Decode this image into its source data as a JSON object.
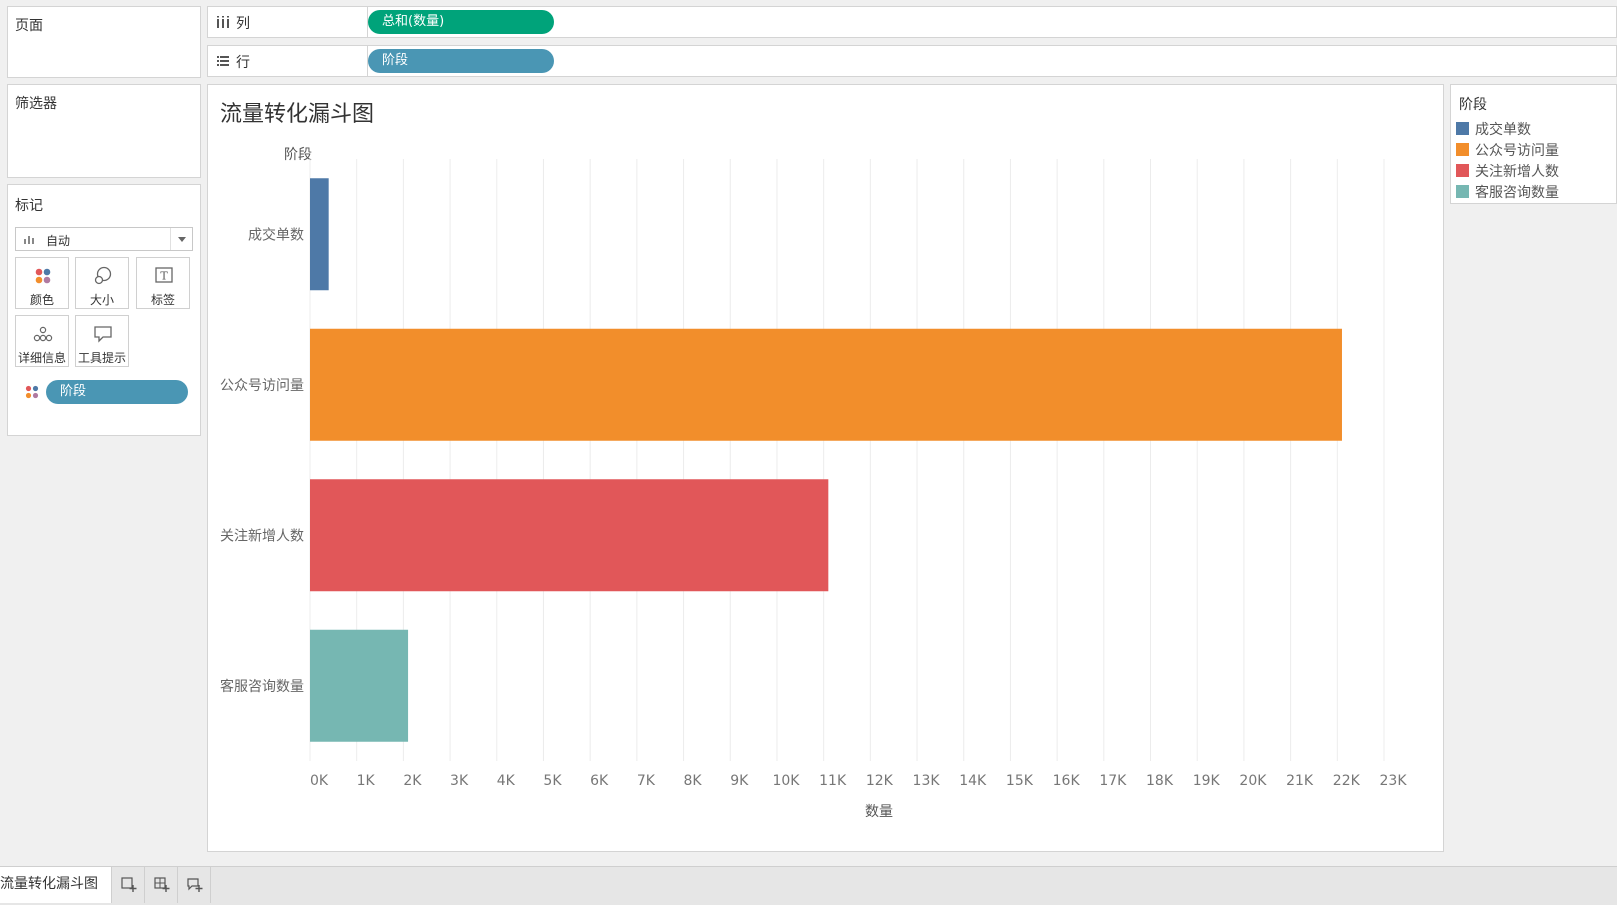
{
  "panels": {
    "pages_title": "页面",
    "filters_title": "筛选器",
    "marks_title": "标记"
  },
  "marks": {
    "mark_type": "自动",
    "buttons": {
      "color": "颜色",
      "size": "大小",
      "label": "标签",
      "detail": "详细信息",
      "tooltip": "工具提示"
    },
    "color_pill": "阶段"
  },
  "shelves": {
    "columns_label": "列",
    "columns_pill": "总和(数量)",
    "rows_label": "行",
    "rows_pill": "阶段"
  },
  "legend": {
    "title": "阶段",
    "items": [
      {
        "label": "成交单数",
        "color": "#4e79a7"
      },
      {
        "label": "公众号访问量",
        "color": "#f28e2b"
      },
      {
        "label": "关注新增人数",
        "color": "#e15759"
      },
      {
        "label": "客服咨询数量",
        "color": "#76b7b2"
      }
    ]
  },
  "sheet_tab": "流量转化漏斗图",
  "tab_icons": [
    "new-worksheet-icon",
    "new-dashboard-icon",
    "new-story-icon"
  ],
  "chart_data": {
    "type": "bar",
    "orientation": "horizontal",
    "title": "流量转化漏斗图",
    "row_header": "阶段",
    "xlabel": "数量",
    "categories": [
      "成交单数",
      "公众号访问量",
      "关注新增人数",
      "客服咨询数量"
    ],
    "values": [
      400,
      22100,
      11100,
      2100
    ],
    "colors": [
      "#4e79a7",
      "#f28e2b",
      "#e15759",
      "#76b7b2"
    ],
    "xlim": [
      0,
      23000
    ],
    "tick_step": 1000,
    "tick_labels": [
      "0K",
      "1K",
      "2K",
      "3K",
      "4K",
      "5K",
      "6K",
      "7K",
      "8K",
      "9K",
      "10K",
      "11K",
      "12K",
      "13K",
      "14K",
      "15K",
      "16K",
      "17K",
      "18K",
      "19K",
      "20K",
      "21K",
      "22K",
      "23K"
    ],
    "grid": true,
    "legend_placement": "right"
  }
}
